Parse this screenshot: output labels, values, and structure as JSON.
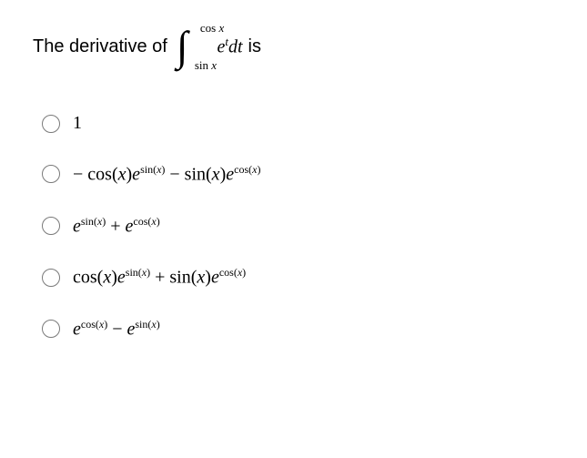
{
  "question": {
    "lead": "The derivative of",
    "trail": "is",
    "integral": {
      "lower_html": "sin <span class='it'>x</span>",
      "upper_html": "cos <span class='it'>x</span>",
      "integrand_html": "<span class='it'>e</span><sup><span class='it'>t</span></sup><span class='it'>dt</span>"
    }
  },
  "options": [
    {
      "html": "1"
    },
    {
      "html": "− cos(<span class='it'>x</span>)<span class='it'>e</span><sup>sin(<span class='it'>x</span>)</sup> − sin(<span class='it'>x</span>)<span class='it'>e</span><sup>cos(<span class='it'>x</span>)</sup>"
    },
    {
      "html": "<span class='it'>e</span><sup>sin(<span class='it'>x</span>)</sup> + <span class='it'>e</span><sup>cos(<span class='it'>x</span>)</sup>"
    },
    {
      "html": "cos(<span class='it'>x</span>)<span class='it'>e</span><sup>sin(<span class='it'>x</span>)</sup> + sin(<span class='it'>x</span>)<span class='it'>e</span><sup>cos(<span class='it'>x</span>)</sup>"
    },
    {
      "html": "<span class='it'>e</span><sup>cos(<span class='it'>x</span>)</sup> − <span class='it'>e</span><sup>sin(<span class='it'>x</span>)</sup>"
    }
  ],
  "style": {
    "text_color": "#000000",
    "bg_color": "#ffffff",
    "radio_border": "#7a7a7a",
    "lead_fontsize": 20,
    "math_fontsize": 20,
    "sup_fontsize": 12
  }
}
